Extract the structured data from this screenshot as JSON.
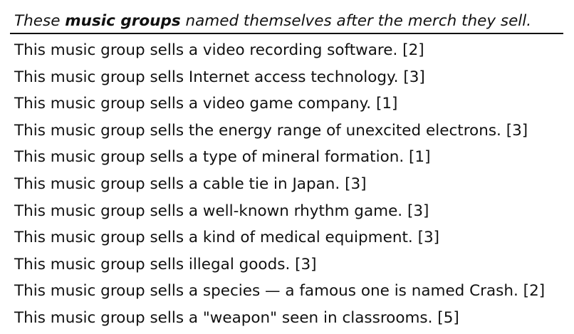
{
  "header": {
    "intro": "These ",
    "emphasis": "music groups",
    "rest": " named themselves after the merch they sell."
  },
  "clues": [
    "This music group sells a video recording software. [2]",
    "This music group sells Internet access technology. [3]",
    "This music group sells a video game company. [1]",
    "This music group sells the energy range of unexcited electrons. [3]",
    "This music group sells a type of mineral formation. [1]",
    "This music group sells a cable tie in Japan. [3]",
    "This music group sells a well-known rhythm game. [3]",
    "This music group sells a kind of medical equipment. [3]",
    "This music group sells illegal goods. [3]",
    "This music group sells a species — a famous one is named Crash. [2]",
    "This music group sells a \"weapon\" seen in classrooms. [5]"
  ]
}
